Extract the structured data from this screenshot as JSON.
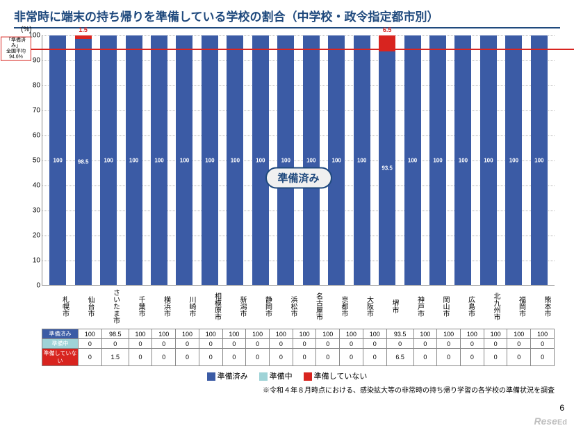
{
  "title": "非常時に端末の持ち帰りを準備している学校の割合（中学校・政令指定都市別）",
  "page_number": "6",
  "footnote": "※令和４年８月時点における、感染拡大等の非常時の持ち帰り学習の各学校の準備状況を調査",
  "brand": {
    "main": "Rese",
    "sub": "Ed",
    "tag": "リシード"
  },
  "chart": {
    "type": "stacked-bar",
    "y_unit": "(%)",
    "ylim": [
      0,
      100
    ],
    "ytick_step": 10,
    "reference": {
      "value": 94.6,
      "label_line1": "「準備済み」",
      "label_line2": "全国平均",
      "label_line3": "94.6%"
    },
    "center_annotation": "準備済み",
    "colors": {
      "prepared": "#3b5ba5",
      "in_progress": "#9fd3d7",
      "not_prepared": "#d8241f",
      "grid": "#b0b0b0",
      "title": "#1f497d",
      "ref_line": "#d8241f",
      "background": "#ffffff"
    },
    "series_names": {
      "prepared": "準備済み",
      "in_progress": "準備中",
      "not_prepared": "準備していない"
    },
    "cities": [
      "札幌市",
      "仙台市",
      "さいたま市",
      "千葉市",
      "横浜市",
      "川崎市",
      "相模原市",
      "新潟市",
      "静岡市",
      "浜松市",
      "名古屋市",
      "京都市",
      "大阪市",
      "堺市",
      "神戸市",
      "岡山市",
      "広島市",
      "北九州市",
      "福岡市",
      "熊本市"
    ],
    "prepared": [
      100,
      98.5,
      100,
      100,
      100,
      100,
      100,
      100,
      100,
      100,
      100,
      100,
      100,
      93.5,
      100,
      100,
      100,
      100,
      100,
      100
    ],
    "in_progress": [
      0,
      0,
      0,
      0,
      0,
      0,
      0,
      0,
      0,
      0,
      0,
      0,
      0,
      0,
      0,
      0,
      0,
      0,
      0,
      0
    ],
    "not_prepared": [
      0,
      1.5,
      0,
      0,
      0,
      0,
      0,
      0,
      0,
      0,
      0,
      0,
      0,
      6.5,
      0,
      0,
      0,
      0,
      0,
      0
    ]
  },
  "legend": [
    {
      "label": "準備済み",
      "color": "#3b5ba5"
    },
    {
      "label": "準備中",
      "color": "#9fd3d7"
    },
    {
      "label": "準備していない",
      "color": "#d8241f"
    }
  ],
  "table": {
    "row_headers": [
      {
        "label": "準備済み",
        "bg": "#3b5ba5"
      },
      {
        "label": "準備中",
        "bg": "#9fd3d7"
      },
      {
        "label": "準備していない",
        "bg": "#d8241f"
      }
    ]
  }
}
